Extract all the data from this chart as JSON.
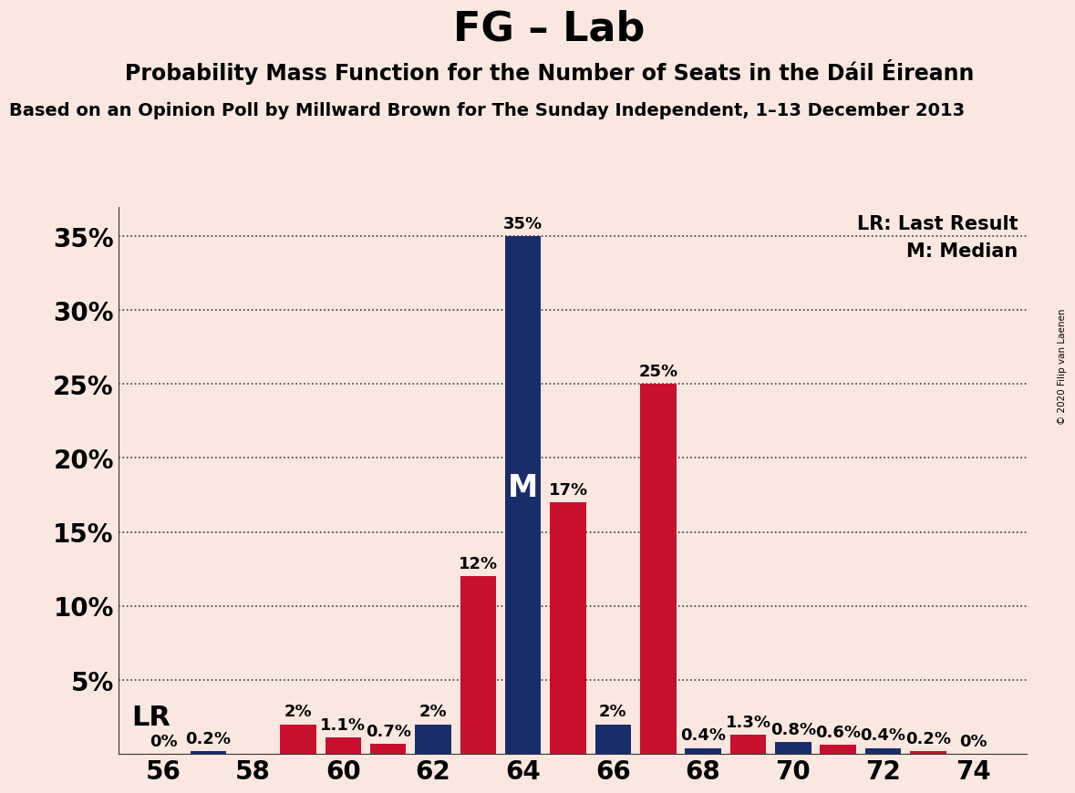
{
  "title": "FG – Lab",
  "subtitle1": "Probability Mass Function for the Number of Seats in the Dáil Éireann",
  "subtitle2": "Based on an Opinion Poll by Millward Brown for The Sunday Independent, 1–13 December 2013",
  "copyright": "© 2020 Filip van Laenen",
  "poll_color": "#C8102E",
  "lr_color": "#1A2D6B",
  "background_color": "#FAE8E0",
  "median_seat": 64,
  "lr_seat": 62,
  "ylim": [
    0,
    37
  ],
  "bar_width": 0.8,
  "xtick_positions": [
    56,
    58,
    60,
    62,
    64,
    66,
    68,
    70,
    72,
    74
  ],
  "title_fontsize": 32,
  "subtitle1_fontsize": 17,
  "subtitle2_fontsize": 14,
  "label_fontsize": 13,
  "legend_fontsize": 15,
  "tick_fontsize": 20,
  "red_seats": [
    56,
    57,
    58,
    59,
    60,
    61,
    62,
    63,
    64,
    65,
    66,
    67,
    68,
    69,
    70,
    71,
    72,
    73,
    74
  ],
  "red_values": [
    0.0,
    0.0,
    0.0,
    2.0,
    1.1,
    0.7,
    0.0,
    12.0,
    0.0,
    17.0,
    0.0,
    25.0,
    0.0,
    1.3,
    0.0,
    0.6,
    0.0,
    0.2,
    0.0
  ],
  "blue_seats": [
    56,
    57,
    58,
    59,
    60,
    61,
    62,
    63,
    64,
    65,
    66,
    67,
    68,
    69,
    70,
    71,
    72,
    73,
    74
  ],
  "blue_values": [
    0.0,
    0.2,
    0.0,
    0.0,
    0.0,
    0.0,
    2.0,
    0.0,
    35.0,
    0.0,
    2.0,
    0.0,
    0.4,
    0.0,
    0.8,
    0.0,
    0.4,
    0.0,
    0.0
  ],
  "red_labels": [
    null,
    null,
    null,
    "2%",
    "1.1%",
    "0.7%",
    null,
    "12%",
    null,
    "17%",
    null,
    "25%",
    null,
    "1.3%",
    null,
    "0.6%",
    null,
    "0.2%",
    null
  ],
  "blue_labels": [
    null,
    "0.2%",
    null,
    null,
    null,
    null,
    "2%",
    null,
    "35%",
    null,
    "2%",
    null,
    "0.4%",
    null,
    "0.8%",
    null,
    "0.4%",
    null,
    "0%"
  ]
}
